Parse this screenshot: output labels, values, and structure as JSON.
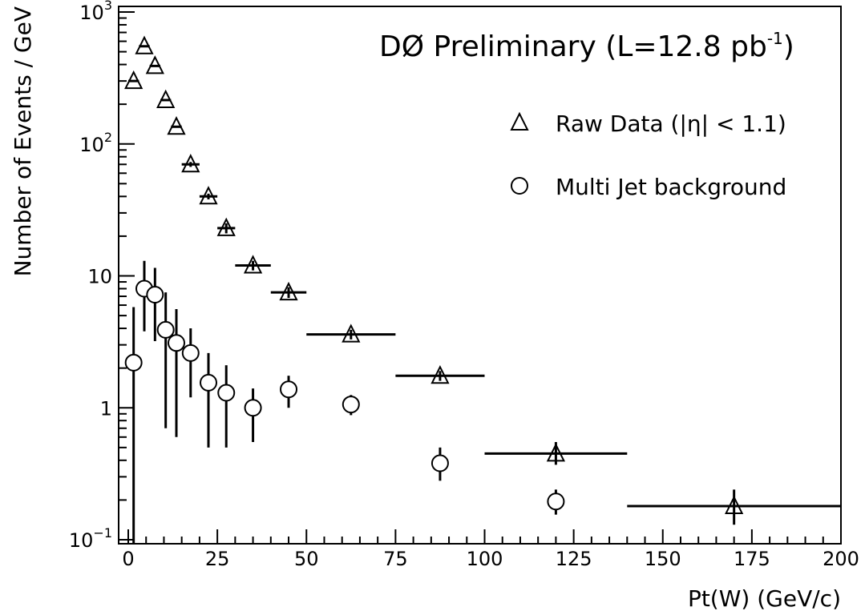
{
  "chart_data": {
    "type": "scatter",
    "title": "DØ Preliminary (L=12.8 pb",
    "title_sup": "-1",
    "title_close": ")",
    "xlabel": "Pt(W) (GeV/c)",
    "ylabel": "Number of Events / GeV",
    "x_range": [
      0,
      200
    ],
    "y_range": [
      0.1,
      1000
    ],
    "y_scale": "log",
    "grid": false,
    "legend_position": "top-right",
    "x_ticks": [
      0,
      25,
      50,
      75,
      100,
      125,
      150,
      175,
      200
    ],
    "x_tick_labels": [
      "0",
      "25",
      "50",
      "75",
      "100",
      "125",
      "150",
      "175",
      "200"
    ],
    "y_tick_labels": [
      {
        "value": 1000,
        "base": "10",
        "exp": "3"
      },
      {
        "value": 100,
        "base": "10",
        "exp": "2"
      },
      {
        "value": 10,
        "base": "10",
        "exp": ""
      },
      {
        "value": 1,
        "base": "1",
        "exp": ""
      },
      {
        "value": 0.1,
        "base": "10",
        "exp": "−1"
      }
    ],
    "series": [
      {
        "name": "Raw Data (|η| < 1.1)",
        "marker": "triangle",
        "points": [
          {
            "x": 1.5,
            "xlo": 0,
            "xhi": 3,
            "y": 300,
            "ylo": 300,
            "yhi": 300
          },
          {
            "x": 4.5,
            "xlo": 3,
            "xhi": 6,
            "y": 550,
            "ylo": 550,
            "yhi": 550
          },
          {
            "x": 7.5,
            "xlo": 6,
            "xhi": 9,
            "y": 390,
            "ylo": 390,
            "yhi": 390
          },
          {
            "x": 10.5,
            "xlo": 9,
            "xhi": 12,
            "y": 215,
            "ylo": 215,
            "yhi": 215
          },
          {
            "x": 13.5,
            "xlo": 12,
            "xhi": 15,
            "y": 135,
            "ylo": 135,
            "yhi": 135
          },
          {
            "x": 17.5,
            "xlo": 15,
            "xhi": 20,
            "y": 70,
            "ylo": 67,
            "yhi": 73
          },
          {
            "x": 22.5,
            "xlo": 20,
            "xhi": 25,
            "y": 40,
            "ylo": 38,
            "yhi": 42
          },
          {
            "x": 27.5,
            "xlo": 25,
            "xhi": 30,
            "y": 23,
            "ylo": 21,
            "yhi": 25
          },
          {
            "x": 35,
            "xlo": 30,
            "xhi": 40,
            "y": 12,
            "ylo": 11,
            "yhi": 13
          },
          {
            "x": 45,
            "xlo": 40,
            "xhi": 50,
            "y": 7.5,
            "ylo": 6.8,
            "yhi": 8.2
          },
          {
            "x": 62.5,
            "xlo": 50,
            "xhi": 75,
            "y": 3.6,
            "ylo": 3.3,
            "yhi": 3.9
          },
          {
            "x": 87.5,
            "xlo": 75,
            "xhi": 100,
            "y": 1.75,
            "ylo": 1.6,
            "yhi": 1.9
          },
          {
            "x": 120,
            "xlo": 100,
            "xhi": 140,
            "y": 0.45,
            "ylo": 0.37,
            "yhi": 0.55
          },
          {
            "x": 170,
            "xlo": 140,
            "xhi": 200,
            "y": 0.18,
            "ylo": 0.13,
            "yhi": 0.24
          }
        ]
      },
      {
        "name": "Multi Jet background",
        "marker": "circle",
        "points": [
          {
            "x": 1.5,
            "y": 2.2,
            "ylo": 0.08,
            "yhi": 5.8
          },
          {
            "x": 4.5,
            "y": 8.0,
            "ylo": 3.8,
            "yhi": 13
          },
          {
            "x": 7.5,
            "y": 7.2,
            "ylo": 3.2,
            "yhi": 11.5
          },
          {
            "x": 10.5,
            "y": 3.9,
            "ylo": 0.7,
            "yhi": 7.5
          },
          {
            "x": 13.5,
            "y": 3.1,
            "ylo": 0.6,
            "yhi": 5.6
          },
          {
            "x": 17.5,
            "y": 2.6,
            "ylo": 1.2,
            "yhi": 4.0
          },
          {
            "x": 22.5,
            "y": 1.55,
            "ylo": 0.5,
            "yhi": 2.6
          },
          {
            "x": 27.5,
            "y": 1.3,
            "ylo": 0.5,
            "yhi": 2.1
          },
          {
            "x": 35,
            "y": 1.0,
            "ylo": 0.55,
            "yhi": 1.4
          },
          {
            "x": 45,
            "y": 1.38,
            "ylo": 1.0,
            "yhi": 1.75
          },
          {
            "x": 62.5,
            "y": 1.06,
            "ylo": 0.88,
            "yhi": 1.25
          },
          {
            "x": 87.5,
            "y": 0.38,
            "ylo": 0.28,
            "yhi": 0.5
          },
          {
            "x": 120,
            "y": 0.195,
            "ylo": 0.155,
            "yhi": 0.24
          }
        ]
      }
    ],
    "legend": [
      {
        "marker": "triangle",
        "label": "Raw Data (|η| < 1.1)"
      },
      {
        "marker": "circle",
        "label": "Multi Jet background"
      }
    ]
  }
}
